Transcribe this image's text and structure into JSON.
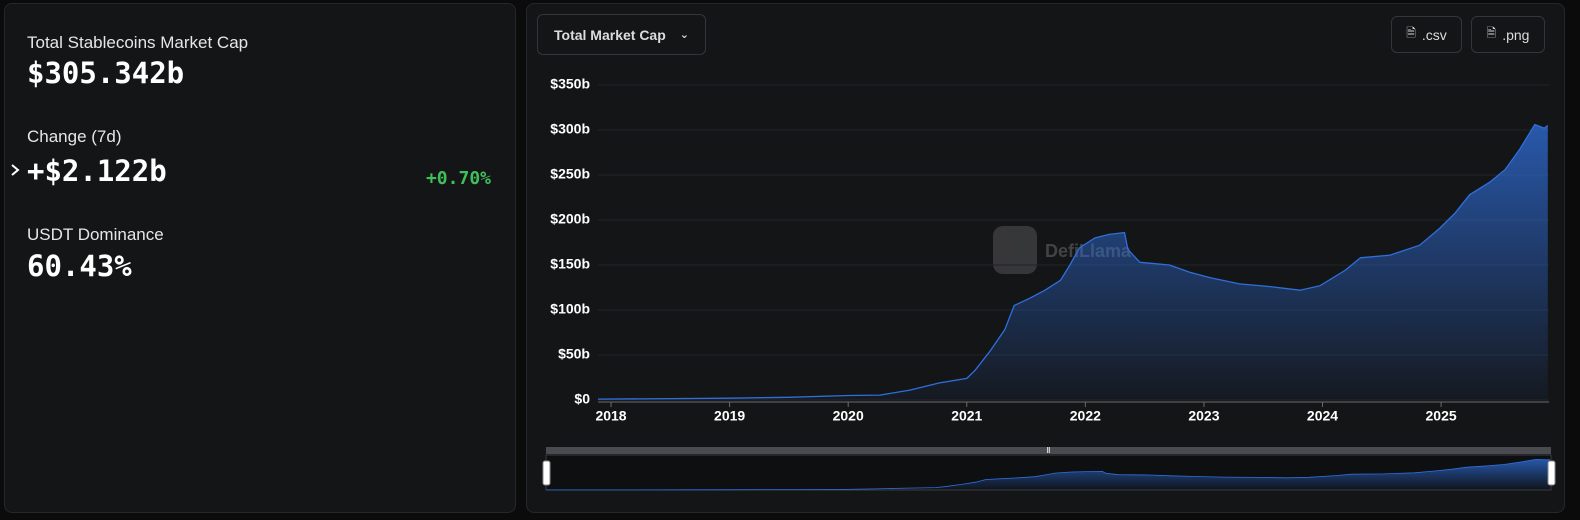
{
  "stats": {
    "market_cap_label": "Total Stablecoins Market Cap",
    "market_cap_value": "$305.342b",
    "change_label": "Change (7d)",
    "change_value": "+$2.122b",
    "change_percent": "+0.70%",
    "dominance_label": "USDT Dominance",
    "dominance_value": "60.43%"
  },
  "controls": {
    "metric_select": "Total Market Cap",
    "csv_button": ".csv",
    "png_button": ".png"
  },
  "chart_data": {
    "type": "area",
    "watermark": "DefiLlama",
    "color": "#2f6fdc",
    "x": [
      2017.89,
      2018.5,
      2019.0,
      2019.5,
      2020.0,
      2020.27,
      2020.52,
      2020.77,
      2021.0,
      2021.07,
      2021.2,
      2021.32,
      2021.4,
      2021.53,
      2021.66,
      2021.79,
      2021.87,
      2021.95,
      2022.08,
      2022.2,
      2022.33,
      2022.36,
      2022.46,
      2022.71,
      2022.88,
      2023.05,
      2023.3,
      2023.56,
      2023.81,
      2023.98,
      2024.19,
      2024.32,
      2024.57,
      2024.82,
      2024.99,
      2025.12,
      2025.24,
      2025.41,
      2025.54,
      2025.66,
      2025.79,
      2025.87,
      2025.9
    ],
    "values": [
      1,
      1.5,
      2,
      3,
      5,
      5.5,
      11,
      19,
      24,
      33,
      55,
      78,
      105,
      113,
      122,
      133,
      150,
      169,
      180,
      184,
      186,
      167,
      153,
      150,
      142,
      136,
      129,
      126,
      122,
      127,
      144,
      158,
      161,
      172,
      191,
      208,
      228,
      242,
      256,
      278,
      306,
      302,
      305
    ],
    "xlim": [
      2017.89,
      2025.91
    ],
    "xticks": [
      2018,
      2019,
      2020,
      2021,
      2022,
      2023,
      2024,
      2025
    ],
    "ylim": [
      0,
      350
    ],
    "yticks": [
      {
        "value": 0,
        "label": "$0"
      },
      {
        "value": 50,
        "label": "$50b"
      },
      {
        "value": 100,
        "label": "$100b"
      },
      {
        "value": 150,
        "label": "$150b"
      },
      {
        "value": 200,
        "label": "$200b"
      },
      {
        "value": 250,
        "label": "$250b"
      },
      {
        "value": 300,
        "label": "$300b"
      },
      {
        "value": 350,
        "label": "$350b"
      }
    ],
    "grid": true
  }
}
